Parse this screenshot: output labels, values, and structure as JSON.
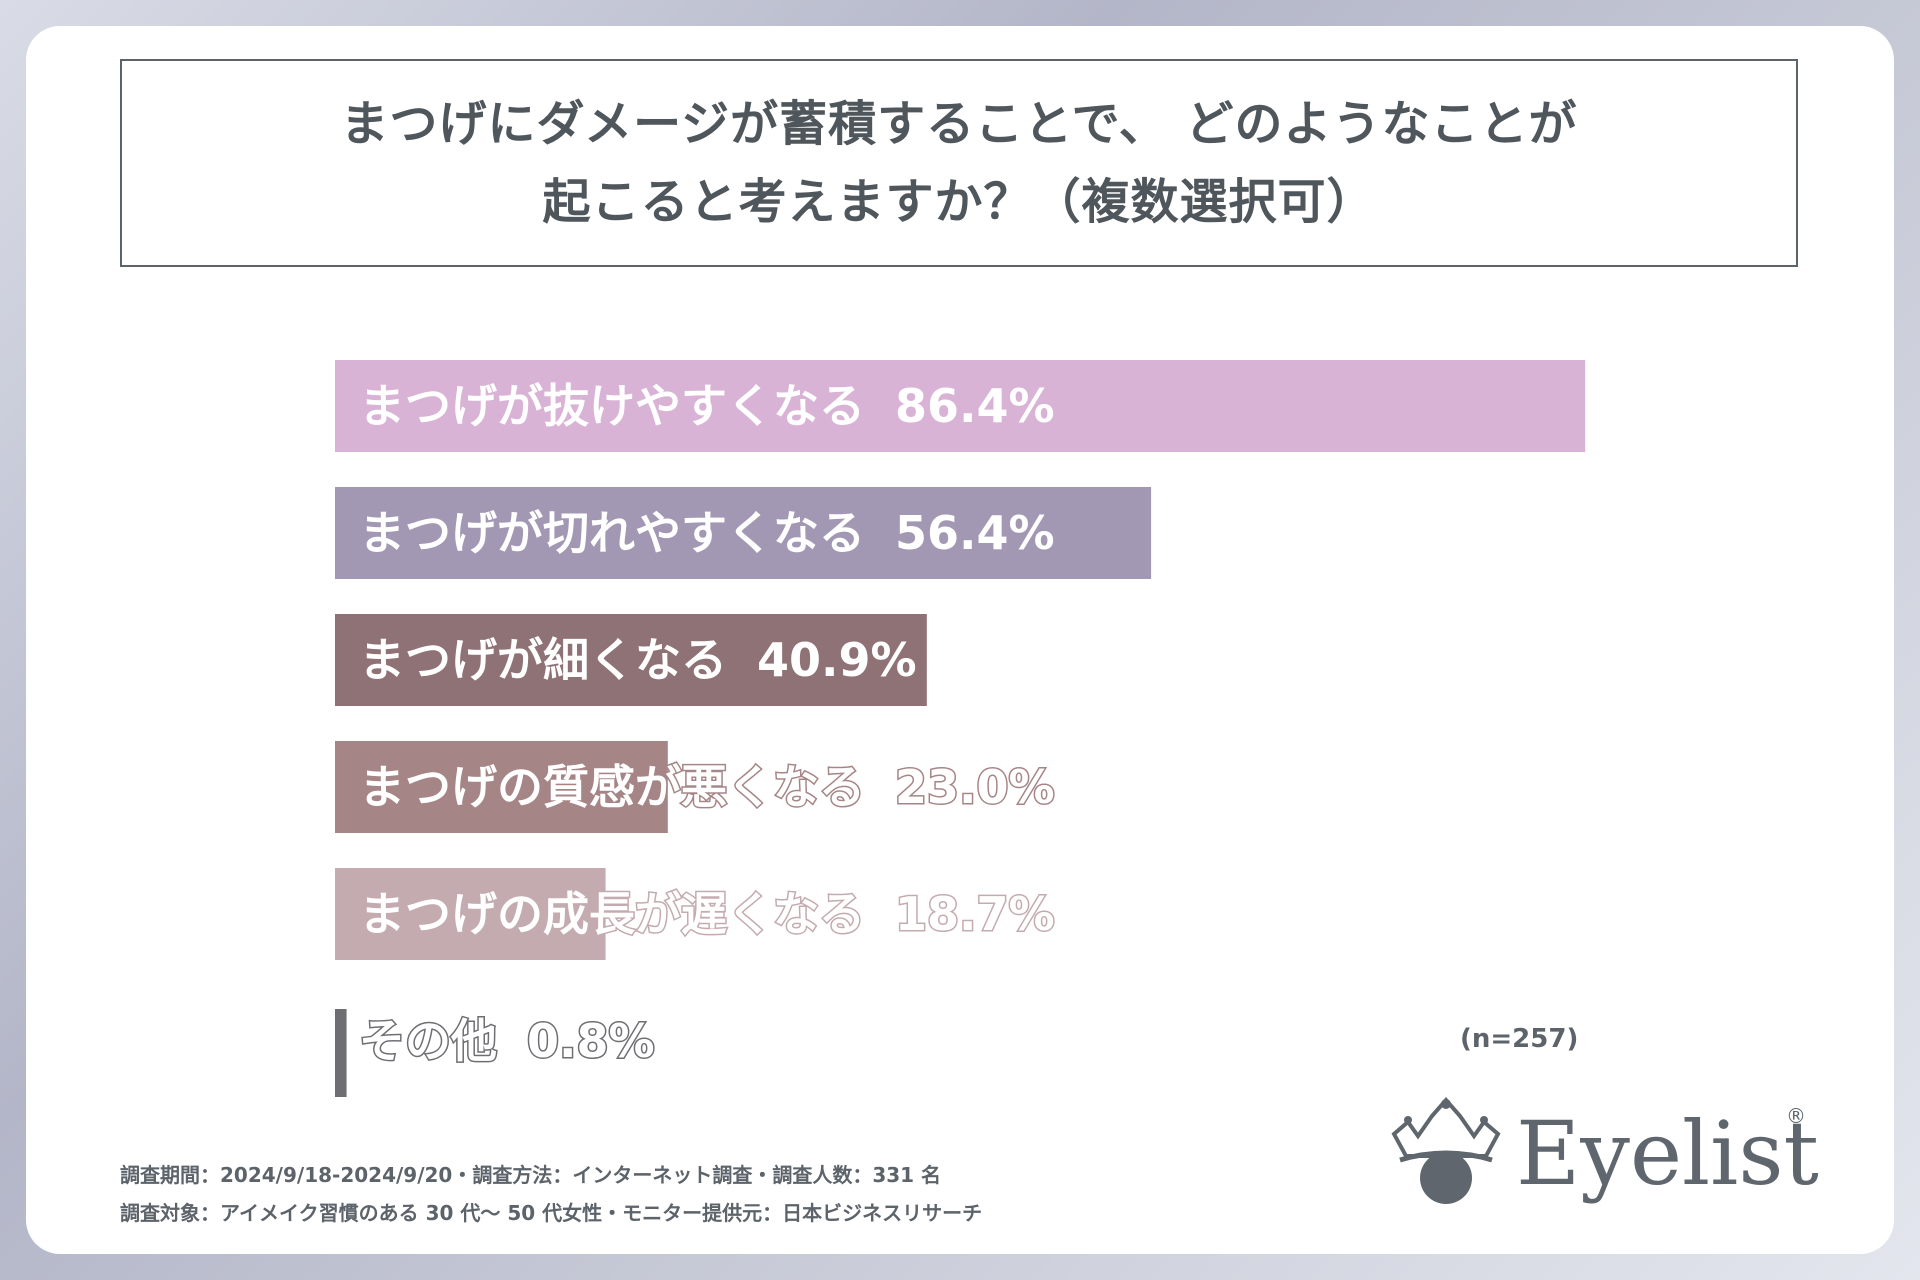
{
  "title": {
    "line1": "まつげにダメージが蓄積することで、 どのようなことが",
    "line2": "起こると考えますか？（複数選択可）"
  },
  "sample_size": "(n=257)",
  "footnotes": {
    "line1": "調査期間：2024/9/18-2024/9/20・調査方法：インターネット調査・調査人数：331 名",
    "line2": "調査対象：アイメイク習慣のある 30 代～ 50 代女性・モニター提供元：日本ビジネスリサーチ"
  },
  "logo": {
    "text": "Eyelist",
    "registered": "®"
  },
  "chart_data": {
    "type": "bar",
    "orientation": "horizontal",
    "unit": "%",
    "categories": [
      "まつげが抜けやすくなる",
      "まつげが切れやすくなる",
      "まつげが細くなる",
      "まつげの質感が悪くなる",
      "まつげの成長が遅くなる",
      "その他"
    ],
    "values": [
      86.4,
      56.4,
      40.9,
      23.0,
      18.7,
      0.8
    ],
    "value_labels": [
      "86.4%",
      "56.4%",
      "40.9%",
      "23.0%",
      "18.7%",
      "0.8%"
    ],
    "colors": [
      "#d9b3d5",
      "#a398b4",
      "#8f7275",
      "#a68586",
      "#c4abb0",
      "#6e6e73"
    ],
    "xlim": [
      0,
      100
    ],
    "grid": false,
    "legend": "none"
  }
}
